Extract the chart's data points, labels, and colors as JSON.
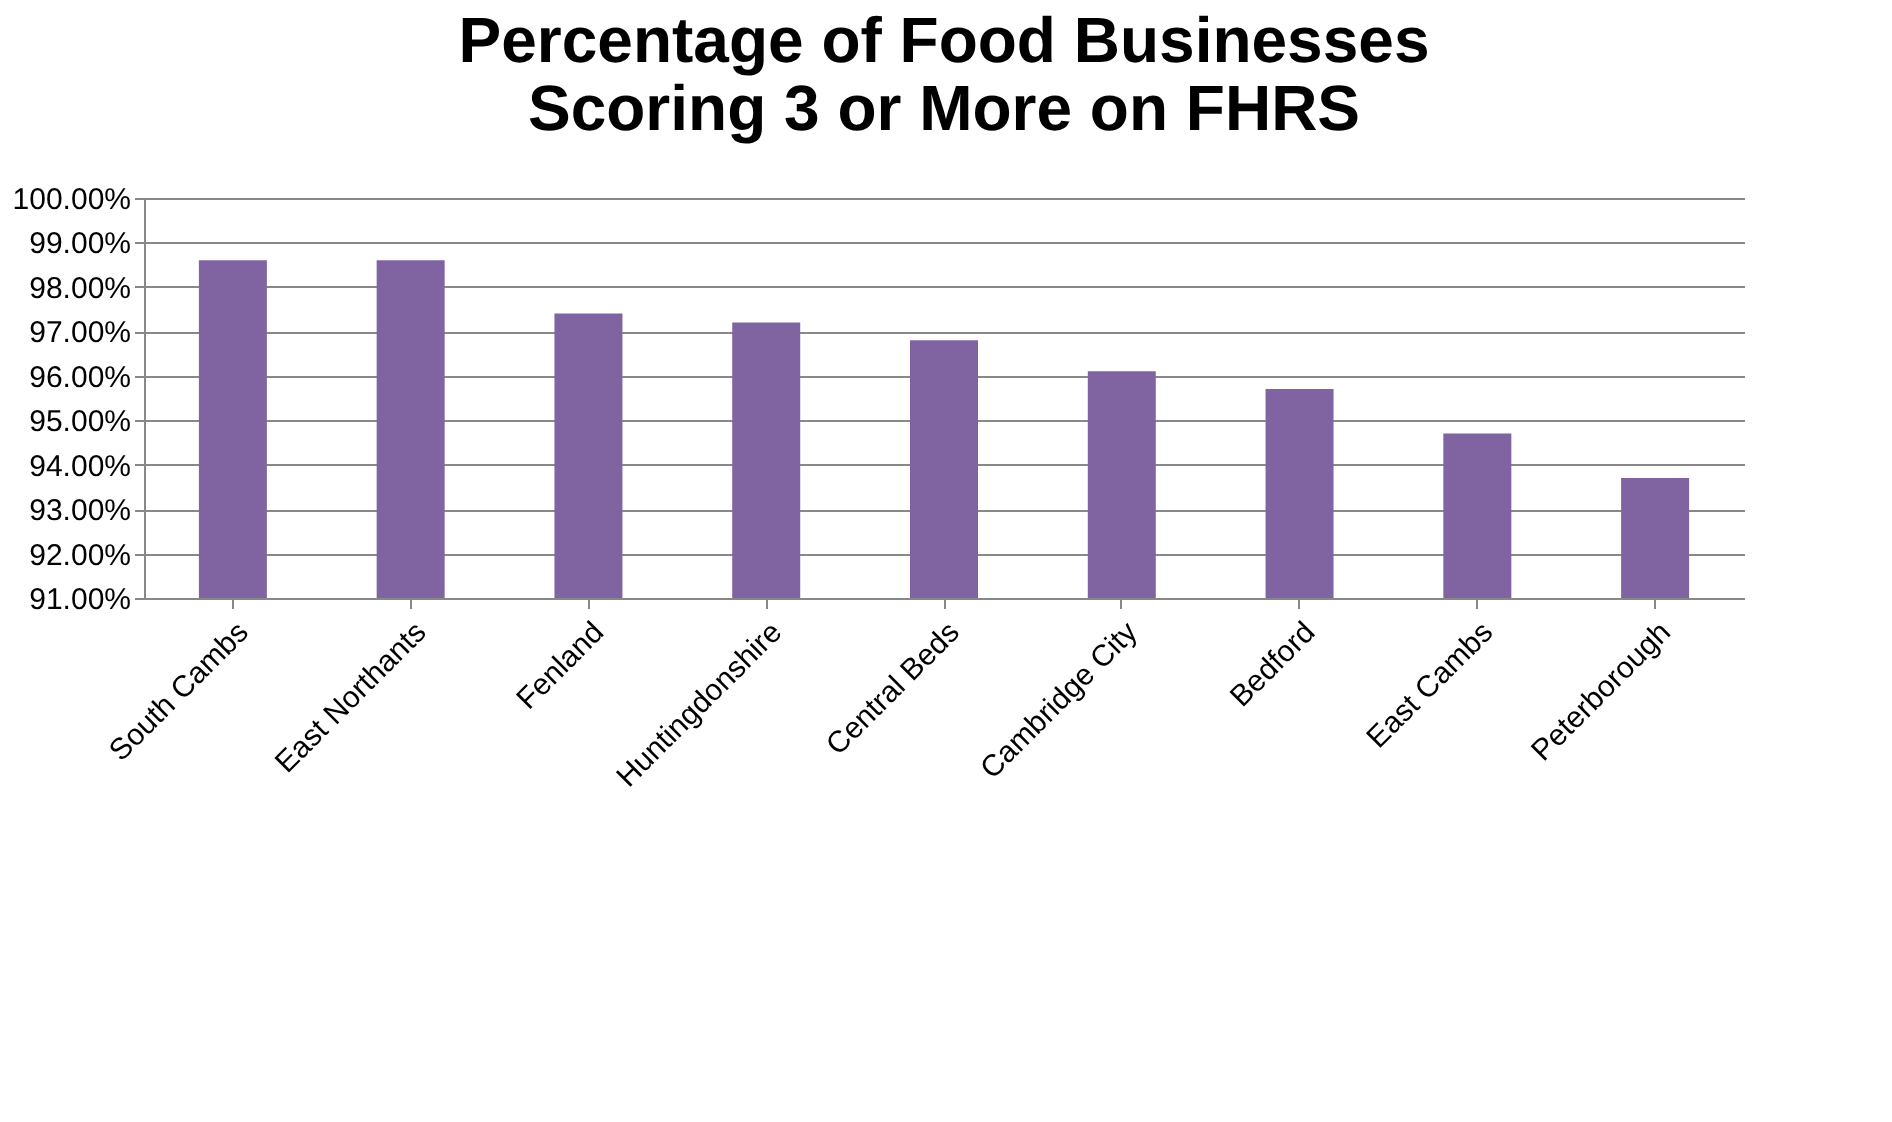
{
  "chart_data": {
    "type": "bar",
    "title": [
      "Percentage of Food Businesses",
      "Scoring 3 or More on FHRS"
    ],
    "categories": [
      "South Cambs",
      "East Northants",
      "Fenland",
      "Huntingdonshire",
      "Central Beds",
      "Cambridge City",
      "Bedford",
      "East Cambs",
      "Peterborough"
    ],
    "values": [
      98.6,
      98.6,
      97.4,
      97.2,
      96.8,
      96.1,
      95.7,
      94.7,
      93.7
    ],
    "color": "#8064a2",
    "ylim": [
      91,
      100
    ],
    "yticks": [
      {
        "value": 91,
        "label": "91.00%"
      },
      {
        "value": 92,
        "label": "92.00%"
      },
      {
        "value": 93,
        "label": "93.00%"
      },
      {
        "value": 94,
        "label": "94.00%"
      },
      {
        "value": 95,
        "label": "95.00%"
      },
      {
        "value": 96,
        "label": "96.00%"
      },
      {
        "value": 97,
        "label": "97.00%"
      },
      {
        "value": 98,
        "label": "98.00%"
      },
      {
        "value": 99,
        "label": "99.00%"
      },
      {
        "value": 100,
        "label": "100.00%"
      }
    ],
    "grid": "y"
  }
}
